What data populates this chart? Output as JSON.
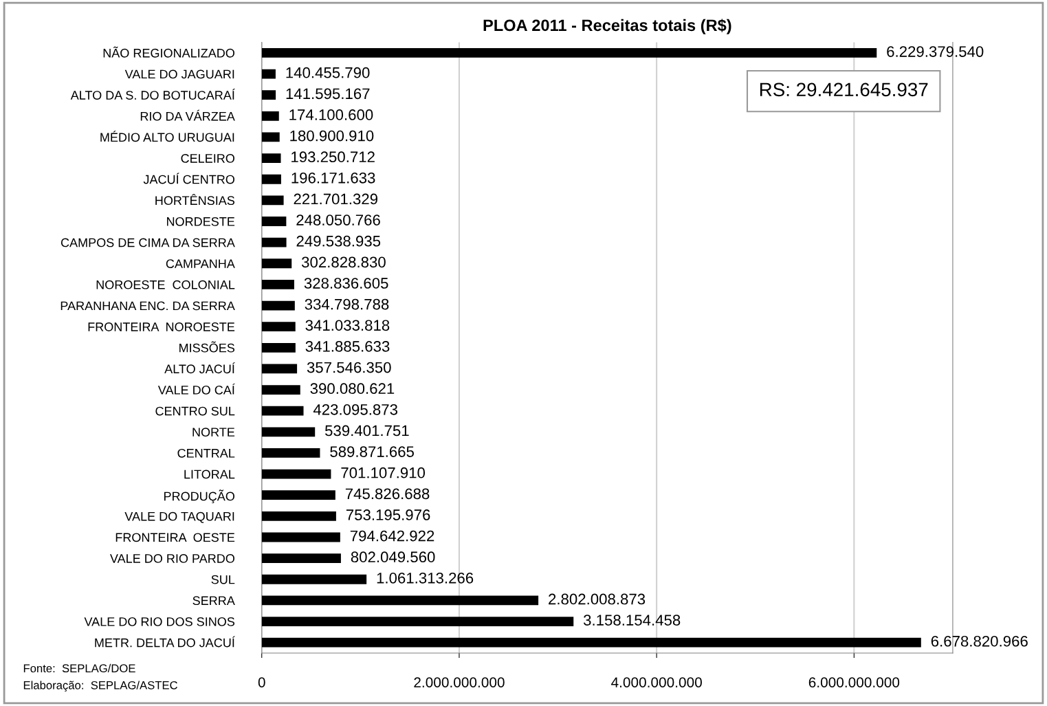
{
  "chart_data": {
    "type": "bar",
    "orientation": "horizontal",
    "title": "PLOA 2011 - Receitas totais (R$)",
    "categories": [
      "NÃO REGIONALIZADO",
      "VALE DO JAGUARI",
      "ALTO DA S. DO BOTUCARAÍ",
      "RIO DA VÁRZEA",
      "MÉDIO ALTO URUGUAI",
      "CELEIRO",
      "JACUÍ CENTRO",
      "HORTÊNSIAS",
      "NORDESTE",
      "CAMPOS DE CIMA DA SERRA",
      "CAMPANHA",
      "NOROESTE  COLONIAL",
      "PARANHANA ENC. DA SERRA",
      "FRONTEIRA  NOROESTE",
      "MISSÕES",
      "ALTO JACUÍ",
      "VALE DO CAÍ",
      "CENTRO SUL",
      "NORTE",
      "CENTRAL",
      "LITORAL",
      "PRODUÇÃO",
      "VALE DO TAQUARI",
      "FRONTEIRA  OESTE",
      "VALE DO RIO PARDO",
      "SUL",
      "SERRA",
      "VALE DO RIO DOS SINOS",
      "METR. DELTA DO JACUÍ"
    ],
    "values": [
      6229379540,
      140455790,
      141595167,
      174100600,
      180900910,
      193250712,
      196171633,
      221701329,
      248050766,
      249538935,
      302828830,
      328836605,
      334798788,
      341033818,
      341885633,
      357546350,
      390080621,
      423095873,
      539401751,
      589871665,
      701107910,
      745826688,
      753195976,
      794642922,
      802049560,
      1061313266,
      2802008873,
      3158154458,
      6678820966
    ],
    "value_labels": [
      "6.229.379.540",
      "140.455.790",
      "141.595.167",
      "174.100.600",
      "180.900.910",
      "193.250.712",
      "196.171.633",
      "221.701.329",
      "248.050.766",
      "249.538.935",
      "302.828.830",
      "328.836.605",
      "334.798.788",
      "341.033.818",
      "341.885.633",
      "357.546.350",
      "390.080.621",
      "423.095.873",
      "539.401.751",
      "589.871.665",
      "701.107.910",
      "745.826.688",
      "753.195.976",
      "794.642.922",
      "802.049.560",
      "1.061.313.266",
      "2.802.008.873",
      "3.158.154.458",
      "6.678.820.966"
    ],
    "color": "#000000",
    "xlim": [
      0,
      7000000000
    ],
    "xticks": [
      0,
      {
        "value": 2000000000,
        "label": "2.000.000.000"
      },
      {
        "value": 4000000000,
        "label": "4.000.000.000"
      },
      {
        "value": 6000000000,
        "label": "6.000.000.000"
      }
    ],
    "grid": "x",
    "annotations": [
      "RS: 29.421.645.937",
      "Fonte:  SEPLAG/DOE",
      "Elaboração:  SEPLAG/ASTEC"
    ]
  }
}
